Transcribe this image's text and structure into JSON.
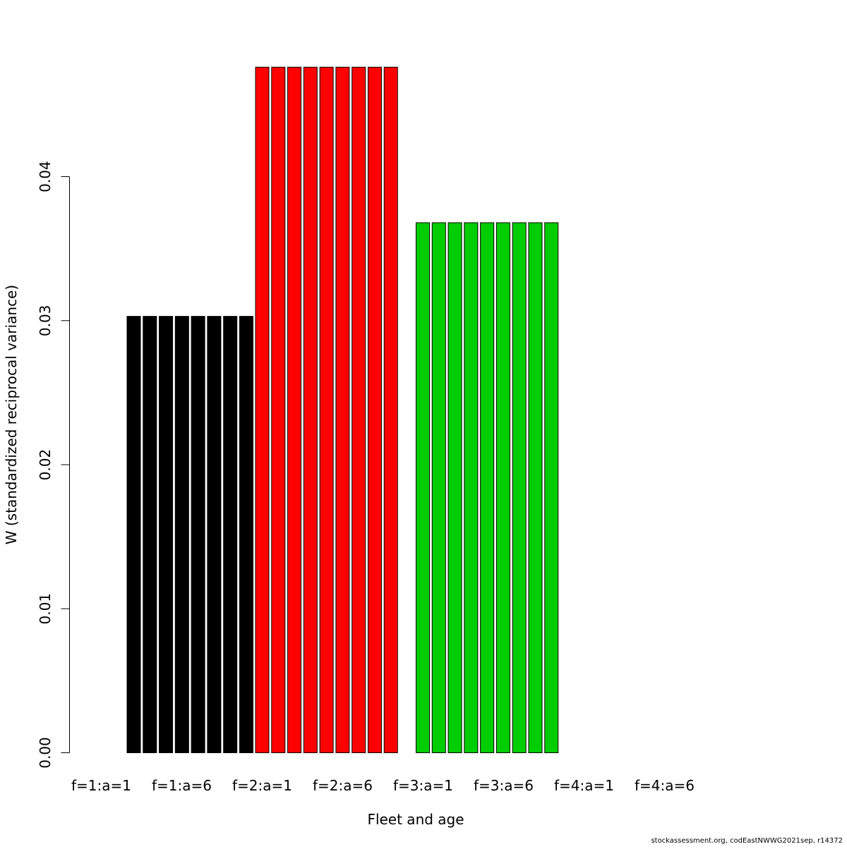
{
  "chart_data": {
    "type": "bar",
    "title": "",
    "xlabel": "Fleet and age",
    "ylabel": "W (standardized reciprocal variance)",
    "ylim": [
      0,
      0.047
    ],
    "yticks": [
      "0.00",
      "0.01",
      "0.02",
      "0.03",
      "0.04"
    ],
    "ytick_values": [
      0,
      0.01,
      0.02,
      0.03,
      0.04
    ],
    "x_tick_labels": [
      "f=1:a=1",
      "f=1:a=6",
      "f=2:a=1",
      "f=2:a=6",
      "f=3:a=1",
      "f=3:a=6",
      "f=4:a=1",
      "f=4:a=6"
    ],
    "grid": false,
    "series": [
      {
        "fleet": 1,
        "color": "#000000",
        "values": [
          0.0303,
          0.0303,
          0.0303,
          0.0303,
          0.0303,
          0.0303,
          0.0303,
          0.0303
        ]
      },
      {
        "fleet": 2,
        "color": "#ff0000",
        "values": [
          0.0476,
          0.0476,
          0.0476,
          0.0476,
          0.0476,
          0.0476,
          0.0476,
          0.0476,
          0.0476
        ]
      },
      {
        "fleet": 3,
        "color": "#00cd00",
        "values": [
          0.0368,
          0.0368,
          0.0368,
          0.0368,
          0.0368,
          0.0368,
          0.0368,
          0.0368,
          0.0368
        ]
      },
      {
        "fleet": 4,
        "color": "#0000ff",
        "values": []
      }
    ]
  },
  "footer": {
    "source": "stockassessment.org, codEastNWWG2021sep, r14372"
  }
}
